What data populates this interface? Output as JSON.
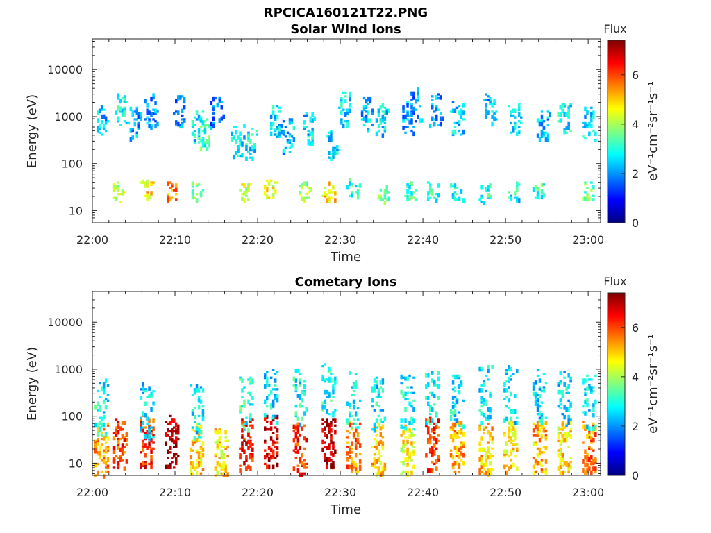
{
  "figure_title": "RPCICA160121T22.PNG",
  "colormap": [
    "#00007f",
    "#0000ff",
    "#0080ff",
    "#00ffff",
    "#80ff80",
    "#ffff00",
    "#ff8000",
    "#ff0000",
    "#7f0000"
  ],
  "chart_data": [
    {
      "type": "heatmap",
      "title": "Solar Wind Ions",
      "xlabel": "Time",
      "ylabel": "Energy (eV)",
      "y_scale": "log",
      "x_ticks": [
        "22:00",
        "22:10",
        "22:20",
        "22:30",
        "22:40",
        "22:50",
        "23:00"
      ],
      "y_ticks": [
        "10",
        "100",
        "1000",
        "10000"
      ],
      "colorbar": {
        "title": "Flux",
        "label": "eV⁻¹cm⁻²sr⁻¹s⁻¹",
        "ticks": [
          "0",
          "2",
          "4",
          "6"
        ],
        "range": [
          0,
          7.4
        ]
      },
      "grid": false,
      "x_range_min": [
        0,
        61.5
      ],
      "y_range_eV": [
        5.5,
        45000
      ],
      "bursts": [
        {
          "t": 1.0,
          "e": 800,
          "f": 2.4
        },
        {
          "t": 3.5,
          "e": 1500,
          "f": 2.8
        },
        {
          "t": 5.0,
          "e": 700,
          "f": 2.2
        },
        {
          "t": 7.0,
          "e": 1300,
          "f": 2.0
        },
        {
          "t": 10.5,
          "e": 1400,
          "f": 1.9
        },
        {
          "t": 12.5,
          "e": 600,
          "f": 2.6
        },
        {
          "t": 13.5,
          "e": 450,
          "f": 3.2
        },
        {
          "t": 15.0,
          "e": 1300,
          "f": 1.8
        },
        {
          "t": 17.5,
          "e": 300,
          "f": 2.6
        },
        {
          "t": 19.0,
          "e": 250,
          "f": 2.7
        },
        {
          "t": 22.0,
          "e": 800,
          "f": 2.6
        },
        {
          "t": 23.5,
          "e": 400,
          "f": 2.3
        },
        {
          "t": 26.0,
          "e": 600,
          "f": 2.4
        },
        {
          "t": 29.0,
          "e": 250,
          "f": 2.5
        },
        {
          "t": 30.5,
          "e": 1500,
          "f": 2.6
        },
        {
          "t": 33.0,
          "e": 1200,
          "f": 2.3
        },
        {
          "t": 35.0,
          "e": 900,
          "f": 2.5
        },
        {
          "t": 38.0,
          "e": 900,
          "f": 2.2
        },
        {
          "t": 39.0,
          "e": 1800,
          "f": 2.0
        },
        {
          "t": 41.5,
          "e": 1300,
          "f": 2.1
        },
        {
          "t": 44.0,
          "e": 900,
          "f": 2.4
        },
        {
          "t": 48.0,
          "e": 1300,
          "f": 2.1
        },
        {
          "t": 51.0,
          "e": 900,
          "f": 2.4
        },
        {
          "t": 54.5,
          "e": 600,
          "f": 2.2
        },
        {
          "t": 57.0,
          "e": 900,
          "f": 2.7
        },
        {
          "t": 60.0,
          "e": 700,
          "f": 2.6
        }
      ],
      "low_bursts": [
        {
          "t": 3.0,
          "e": 25,
          "f": 4.0
        },
        {
          "t": 6.5,
          "e": 28,
          "f": 5.0
        },
        {
          "t": 9.5,
          "e": 25,
          "f": 5.5
        },
        {
          "t": 12.5,
          "e": 25,
          "f": 3.8
        },
        {
          "t": 18.5,
          "e": 25,
          "f": 4.2
        },
        {
          "t": 21.5,
          "e": 28,
          "f": 4.5
        },
        {
          "t": 25.5,
          "e": 25,
          "f": 4.0
        },
        {
          "t": 28.5,
          "e": 25,
          "f": 4.8
        },
        {
          "t": 31.5,
          "e": 30,
          "f": 3.0
        },
        {
          "t": 35.0,
          "e": 25,
          "f": 3.4
        },
        {
          "t": 38.5,
          "e": 25,
          "f": 3.2
        },
        {
          "t": 41.0,
          "e": 25,
          "f": 3.1
        },
        {
          "t": 44.0,
          "e": 25,
          "f": 3.0
        },
        {
          "t": 47.5,
          "e": 25,
          "f": 2.9
        },
        {
          "t": 51.0,
          "e": 25,
          "f": 2.8
        },
        {
          "t": 54.0,
          "e": 25,
          "f": 3.2
        },
        {
          "t": 60.0,
          "e": 25,
          "f": 3.4
        }
      ]
    },
    {
      "type": "heatmap",
      "title": "Cometary Ions",
      "xlabel": "Time",
      "ylabel": "Energy (eV)",
      "y_scale": "log",
      "x_ticks": [
        "22:00",
        "22:10",
        "22:20",
        "22:30",
        "22:40",
        "22:50",
        "23:00"
      ],
      "y_ticks": [
        "10",
        "100",
        "1000",
        "10000"
      ],
      "colorbar": {
        "title": "Flux",
        "label": "eV⁻¹cm⁻²sr⁻¹s⁻¹",
        "ticks": [
          "0",
          "2",
          "4",
          "6"
        ],
        "range": [
          0,
          7.4
        ]
      },
      "grid": false,
      "x_range_min": [
        0,
        61.5
      ],
      "y_range_eV": [
        5.5,
        45000
      ],
      "bursts": [
        {
          "t": 1.0,
          "e": 20,
          "f": 5.4
        },
        {
          "t": 3.2,
          "e": 25,
          "f": 6.0
        },
        {
          "t": 6.5,
          "e": 30,
          "f": 6.2
        },
        {
          "t": 9.5,
          "e": 28,
          "f": 7.2
        },
        {
          "t": 12.5,
          "e": 20,
          "f": 5.0
        },
        {
          "t": 15.5,
          "e": 15,
          "f": 4.8
        },
        {
          "t": 18.5,
          "e": 25,
          "f": 6.4
        },
        {
          "t": 21.5,
          "e": 30,
          "f": 6.8
        },
        {
          "t": 25.0,
          "e": 20,
          "f": 6.2
        },
        {
          "t": 28.5,
          "e": 25,
          "f": 7.0
        },
        {
          "t": 31.5,
          "e": 22,
          "f": 5.6
        },
        {
          "t": 34.5,
          "e": 20,
          "f": 5.0
        },
        {
          "t": 38.0,
          "e": 20,
          "f": 4.6
        },
        {
          "t": 41.0,
          "e": 25,
          "f": 6.0
        },
        {
          "t": 44.0,
          "e": 22,
          "f": 5.2
        },
        {
          "t": 47.5,
          "e": 22,
          "f": 5.0
        },
        {
          "t": 50.5,
          "e": 22,
          "f": 4.8
        },
        {
          "t": 54.0,
          "e": 22,
          "f": 5.2
        },
        {
          "t": 57.0,
          "e": 22,
          "f": 4.8
        },
        {
          "t": 60.0,
          "e": 22,
          "f": 5.6
        }
      ],
      "low_bursts": [
        {
          "t": 1.0,
          "e": 150,
          "f": 2.8
        },
        {
          "t": 6.5,
          "e": 140,
          "f": 2.6
        },
        {
          "t": 12.5,
          "e": 120,
          "f": 2.7
        },
        {
          "t": 18.5,
          "e": 200,
          "f": 3.0
        },
        {
          "t": 21.5,
          "e": 300,
          "f": 2.6
        },
        {
          "t": 25.0,
          "e": 250,
          "f": 2.8
        },
        {
          "t": 28.5,
          "e": 350,
          "f": 2.9
        },
        {
          "t": 31.5,
          "e": 220,
          "f": 2.8
        },
        {
          "t": 34.5,
          "e": 180,
          "f": 2.7
        },
        {
          "t": 38.0,
          "e": 200,
          "f": 2.6
        },
        {
          "t": 41.0,
          "e": 250,
          "f": 2.8
        },
        {
          "t": 44.0,
          "e": 220,
          "f": 2.7
        },
        {
          "t": 47.5,
          "e": 300,
          "f": 2.6
        },
        {
          "t": 50.5,
          "e": 300,
          "f": 2.5
        },
        {
          "t": 54.0,
          "e": 250,
          "f": 2.6
        },
        {
          "t": 57.0,
          "e": 250,
          "f": 2.6
        },
        {
          "t": 60.0,
          "e": 220,
          "f": 2.7
        }
      ]
    }
  ]
}
